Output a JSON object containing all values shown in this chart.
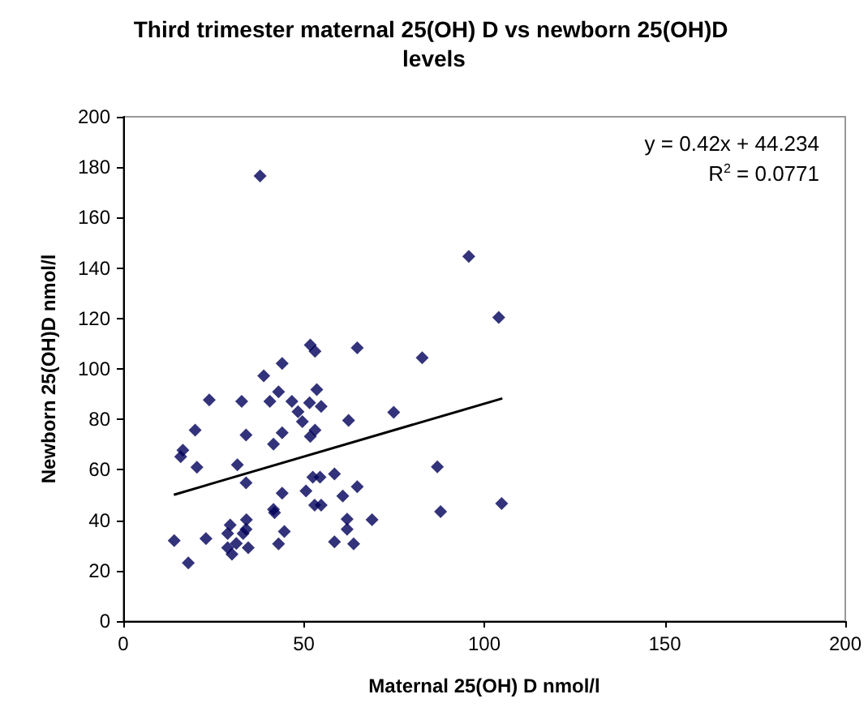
{
  "chart_data": {
    "type": "scatter",
    "title": "Third trimester maternal 25(OH) D vs newborn 25(OH)D levels",
    "xlabel": "Maternal 25(OH) D nmol/l",
    "ylabel": "Newborn 25(OH)D nmol/l",
    "annotations": [
      "y = 0.42x + 44.234",
      "R$^{2}$ = 0.0771"
    ],
    "xlim": [
      0,
      200
    ],
    "xticks": [
      0,
      50,
      100,
      150,
      200
    ],
    "ylim": [
      0,
      200
    ],
    "yticks": [
      0,
      20,
      40,
      60,
      80,
      100,
      120,
      140,
      160,
      180,
      200
    ],
    "grid": false,
    "marker": "diamond",
    "series": [
      {
        "color": "#00005a",
        "x": [
          37.9,
          95.7,
          104,
          51.8,
          53.1,
          64.8,
          82.8,
          44,
          38.9,
          43,
          23.8,
          32.8,
          40.6,
          46.7,
          53.6,
          51.6,
          54.8,
          48.4,
          49.6,
          74.9,
          62.4,
          19.9,
          53.1,
          51.8,
          34,
          44,
          41.6,
          16.5,
          15.9,
          20.4,
          31.6,
          87,
          34,
          52.5,
          54.5,
          58.5,
          50.6,
          44,
          60.8,
          64.8,
          53,
          54.8,
          104.8,
          87.9,
          41.6,
          41.9,
          34.1,
          29.6,
          62,
          68.9,
          62,
          44.6,
          28.9,
          33.2,
          34,
          14.1,
          22.9,
          31.3,
          28.9,
          34.6,
          30.1,
          43,
          58.5,
          63.8,
          18
        ],
        "values": [
          176.5,
          144.6,
          120.4,
          109.5,
          107,
          108.4,
          104.4,
          102.2,
          97.3,
          90.9,
          87.7,
          87.1,
          87.1,
          87.1,
          91.8,
          86.6,
          85.1,
          83,
          79.1,
          82.8,
          79.6,
          75.7,
          75.7,
          73.2,
          73.8,
          74.7,
          70.2,
          67.8,
          65.2,
          61,
          62,
          61.2,
          54.8,
          57.1,
          57.1,
          58.4,
          51.6,
          50.7,
          49.6,
          53.3,
          46,
          46,
          46.6,
          43.4,
          44.3,
          43,
          40.2,
          38.1,
          40.4,
          40.2,
          36.4,
          35.5,
          34.7,
          34.7,
          36.4,
          31.9,
          32.7,
          30.8,
          29.1,
          29.1,
          26.5,
          30.6,
          31.4,
          30.6,
          23.1
        ]
      },
      {
        "type": "line",
        "color": "#000000",
        "marker": "none",
        "line_style": "solid",
        "x": [
          14,
          105
        ],
        "values": [
          50.1,
          88.3
        ]
      }
    ]
  }
}
